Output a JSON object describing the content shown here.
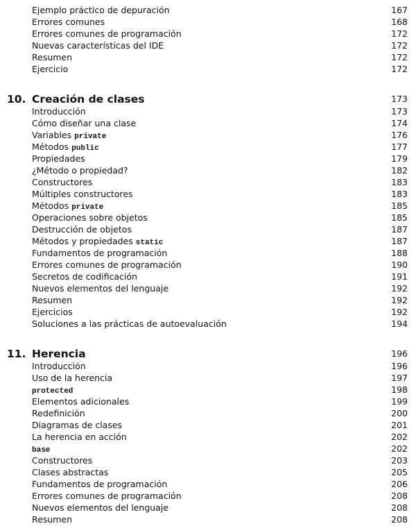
{
  "sections": [
    {
      "entries": [
        {
          "text": "Ejemplo práctico de depuración",
          "page": 167
        },
        {
          "text": "Errores comunes",
          "page": 168
        },
        {
          "text": "Errores comunes de programación",
          "page": 172
        },
        {
          "text": "Nuevas características del IDE",
          "page": 172
        },
        {
          "text": "Resumen",
          "page": 172
        },
        {
          "text": "Ejercicio",
          "page": 172
        }
      ]
    },
    {
      "number": "10.",
      "title": "Creación de clases",
      "page": 173,
      "entries": [
        {
          "text": "Introducción",
          "page": 173
        },
        {
          "text": "Cómo diseñar una clase",
          "page": 174
        },
        {
          "text": "Variables",
          "code": "private",
          "page": 176
        },
        {
          "text": "Métodos",
          "code": "public",
          "page": 177
        },
        {
          "text": "Propiedades",
          "page": 179
        },
        {
          "text": "¿Método o propiedad?",
          "page": 182
        },
        {
          "text": "Constructores",
          "page": 183
        },
        {
          "text": "Múltiples constructores",
          "page": 183
        },
        {
          "text": "Métodos",
          "code": "private",
          "page": 185
        },
        {
          "text": "Operaciones sobre objetos",
          "page": 185
        },
        {
          "text": "Destrucción de objetos",
          "page": 187
        },
        {
          "text": "Métodos y propiedades",
          "code": "static",
          "page": 187
        },
        {
          "text": "Fundamentos de programación",
          "page": 188
        },
        {
          "text": "Errores comunes de programación",
          "page": 190
        },
        {
          "text": "Secretos de codificación",
          "page": 191
        },
        {
          "text": "Nuevos elementos del lenguaje",
          "page": 192
        },
        {
          "text": "Resumen",
          "page": 192
        },
        {
          "text": "Ejercicios",
          "page": 192
        },
        {
          "text": "Soluciones a las prácticas de autoevaluación",
          "page": 194
        }
      ]
    },
    {
      "number": "11.",
      "title": "Herencia",
      "page": 196,
      "entries": [
        {
          "text": "Introducción",
          "page": 196
        },
        {
          "text": "Uso de la herencia",
          "page": 197
        },
        {
          "code": "protected",
          "page": 198
        },
        {
          "text": "Elementos adicionales",
          "page": 199
        },
        {
          "text": "Redefinición",
          "page": 200
        },
        {
          "text": "Diagramas de clases",
          "page": 201
        },
        {
          "text": "La herencia en acción",
          "page": 202
        },
        {
          "code": "base",
          "page": 202
        },
        {
          "text": "Constructores",
          "page": 203
        },
        {
          "text": "Clases abstractas",
          "page": 205
        },
        {
          "text": "Fundamentos de programación",
          "page": 206
        },
        {
          "text": "Errores comunes de programación",
          "page": 208
        },
        {
          "text": "Nuevos elementos del lenguaje",
          "page": 208
        },
        {
          "text": "Resumen",
          "page": 208
        }
      ]
    }
  ]
}
